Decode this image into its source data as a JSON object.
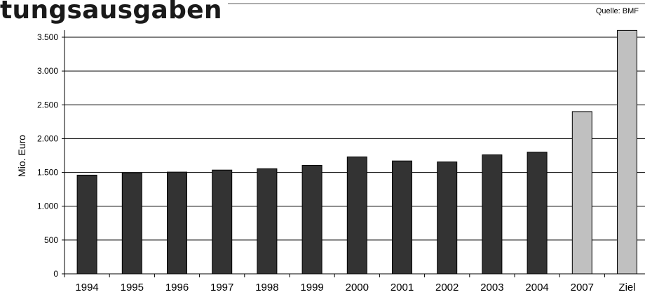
{
  "header": {
    "title": "tungsausgaben",
    "source": "Quelle: BMF"
  },
  "chart_data": {
    "type": "bar",
    "ylabel": "Mio. Euro",
    "ylim": [
      0,
      3500
    ],
    "yticks": [
      0,
      500,
      1000,
      1500,
      2000,
      2500,
      3000,
      3500
    ],
    "ytick_labels": [
      "0",
      "500",
      "1.000",
      "1.500",
      "2.000",
      "2.500",
      "3.000",
      "3.500"
    ],
    "categories": [
      "1994",
      "1995",
      "1996",
      "1997",
      "1998",
      "1999",
      "2000",
      "2001",
      "2002",
      "2003",
      "2004",
      "2007",
      "Ziel"
    ],
    "values": [
      1460,
      1495,
      1505,
      1535,
      1555,
      1605,
      1730,
      1670,
      1655,
      1760,
      1800,
      2400,
      3600
    ],
    "bar_colors": [
      "#333333",
      "#333333",
      "#333333",
      "#333333",
      "#333333",
      "#333333",
      "#333333",
      "#333333",
      "#333333",
      "#333333",
      "#333333",
      "#c0c0c0",
      "#c0c0c0"
    ],
    "grid": true
  }
}
